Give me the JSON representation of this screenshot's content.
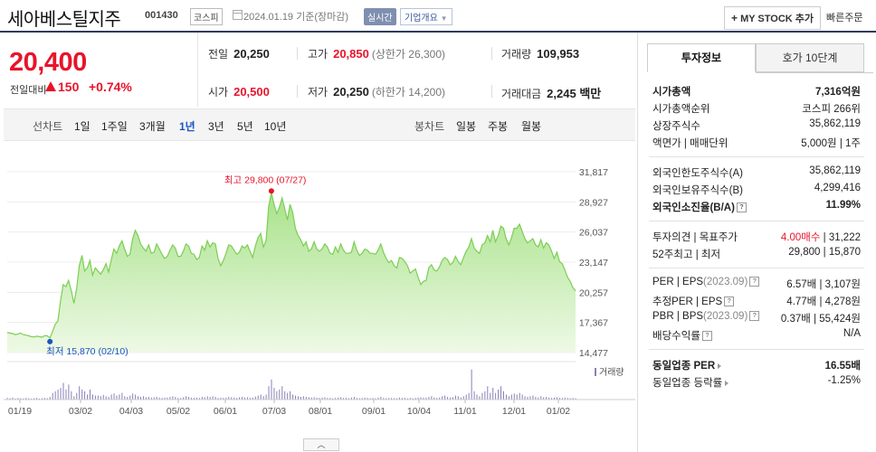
{
  "header": {
    "stock_name": "세아베스틸지주",
    "stock_code": "001430",
    "market": "코스피",
    "date_text": "2024.01.19 기준(장마감)",
    "realtime": "실시간",
    "company_btn": "기업개요",
    "mystock_btn": "MY STOCK 추가",
    "mystock_plus": "+",
    "quick_order": "빠른주문"
  },
  "price": {
    "current": "20,400",
    "change_label": "전일대비",
    "change_value": "150",
    "change_pct": "+0.74%"
  },
  "stats": {
    "prev_close_label": "전일",
    "prev_close": "20,250",
    "high_label": "고가",
    "high": "20,850",
    "upper_limit": "(상한가 26,300)",
    "volume_label": "거래량",
    "volume": "109,953",
    "open_label": "시가",
    "open": "20,500",
    "low_label": "저가",
    "low": "20,250",
    "lower_limit": "(하한가 14,200)",
    "amount_label": "거래대금",
    "amount": "2,245 백만"
  },
  "range_bar": {
    "line_label": "선차트",
    "line_ranges": [
      "1일",
      "1주일",
      "3개월",
      "1년",
      "3년",
      "5년",
      "10년"
    ],
    "active_range": "1년",
    "candle_label": "봉차트",
    "candle_ranges": [
      "일봉",
      "주봉",
      "월봉"
    ]
  },
  "chart_data": {
    "type": "area",
    "y_ticks": [
      "31,817",
      "28,927",
      "26,037",
      "23,147",
      "20,257",
      "17,367",
      "14,477"
    ],
    "ylim": [
      14477,
      31817
    ],
    "x_ticks": [
      "01/19",
      "03/02",
      "04/03",
      "05/02",
      "06/01",
      "07/03",
      "08/01",
      "09/01",
      "10/04",
      "11/01",
      "12/01",
      "01/02"
    ],
    "high_label": "최고 29,800 (07/27)",
    "low_label": "최저 15,870 (02/10)",
    "volume_legend": "거래량",
    "series": [
      {
        "values": [
          16400,
          16350,
          16300,
          16200,
          16250,
          16350,
          16200,
          16150,
          16100,
          16000,
          15970,
          16050,
          16000,
          15950,
          16100,
          16080,
          15870,
          16500,
          17200,
          17500,
          19500,
          21000,
          20800,
          21400,
          20400,
          19200,
          20600,
          22800,
          23800,
          22300,
          22600,
          23300,
          21900,
          22600,
          22300,
          22000,
          22400,
          23000,
          22200,
          23400,
          24400,
          24000,
          24700,
          25200,
          24400,
          23700,
          23900,
          25400,
          26200,
          25700,
          24900,
          24500,
          24200,
          24800,
          24000,
          24100,
          24900,
          24400,
          23900,
          23500,
          23700,
          24300,
          24800,
          24500,
          23700,
          23700,
          24200,
          24900,
          24700,
          24000,
          23900,
          23400,
          23600,
          24700,
          24300,
          25200,
          24600,
          25000,
          24900,
          23500,
          22800,
          23300,
          24000,
          24800,
          24700,
          24300,
          23900,
          24100,
          24700,
          24500,
          24800,
          24200,
          23600,
          24700,
          25500,
          25900,
          24600,
          25200,
          28500,
          29800,
          28700,
          27800,
          28400,
          29300,
          28300,
          27200,
          28700,
          27900,
          26400,
          25700,
          25300,
          24700,
          25100,
          24200,
          24400,
          25100,
          24400,
          24200,
          24400,
          24900,
          24600,
          24000,
          23900,
          24600,
          24100,
          24900,
          24300,
          24000,
          24000,
          24100,
          25100,
          24300,
          23800,
          24000,
          24400,
          24300,
          24000,
          24000,
          23900,
          24300,
          24900,
          24100,
          23500,
          23100,
          23300,
          22800,
          22600,
          23600,
          23500,
          23200,
          22800,
          22100,
          22300,
          22500,
          21700,
          21000,
          21300,
          21400,
          22600,
          22900,
          22400,
          22300,
          22700,
          23300,
          23600,
          23400,
          22900,
          23100,
          23700,
          23200,
          22900,
          23600,
          24200,
          24600,
          25400,
          24500,
          24200,
          24000,
          24800,
          25000,
          25700,
          25100,
          26200,
          25100,
          25700,
          26600,
          26400,
          25400,
          24800,
          25500,
          26400,
          26400,
          26800,
          26100,
          25400,
          25000,
          25200,
          25400,
          24800,
          24600,
          25300,
          24500,
          25000,
          24800,
          24200,
          23500,
          24100,
          23200,
          23000,
          22400,
          21700,
          21300,
          20700,
          20400
        ]
      },
      {
        "name": "거래량",
        "values": [
          0.05,
          0.04,
          0.06,
          0.03,
          0.05,
          0.04,
          0.03,
          0.05,
          0.04,
          0.03,
          0.04,
          0.05,
          0.03,
          0.04,
          0.05,
          0.04,
          0.08,
          0.2,
          0.25,
          0.3,
          0.35,
          0.5,
          0.3,
          0.45,
          0.25,
          0.1,
          0.2,
          0.4,
          0.3,
          0.25,
          0.15,
          0.3,
          0.15,
          0.12,
          0.12,
          0.1,
          0.14,
          0.1,
          0.08,
          0.15,
          0.18,
          0.12,
          0.15,
          0.2,
          0.1,
          0.08,
          0.12,
          0.18,
          0.15,
          0.1,
          0.08,
          0.1,
          0.07,
          0.08,
          0.06,
          0.07,
          0.08,
          0.06,
          0.05,
          0.06,
          0.06,
          0.08,
          0.1,
          0.08,
          0.05,
          0.05,
          0.07,
          0.1,
          0.08,
          0.06,
          0.05,
          0.06,
          0.05,
          0.08,
          0.07,
          0.1,
          0.08,
          0.1,
          0.08,
          0.05,
          0.06,
          0.05,
          0.06,
          0.08,
          0.07,
          0.06,
          0.05,
          0.07,
          0.08,
          0.06,
          0.07,
          0.05,
          0.06,
          0.09,
          0.12,
          0.15,
          0.1,
          0.15,
          0.4,
          0.6,
          0.35,
          0.25,
          0.3,
          0.4,
          0.25,
          0.2,
          0.25,
          0.15,
          0.12,
          0.1,
          0.08,
          0.1,
          0.08,
          0.07,
          0.06,
          0.07,
          0.06,
          0.05,
          0.06,
          0.07,
          0.05,
          0.05,
          0.04,
          0.05,
          0.06,
          0.07,
          0.05,
          0.05,
          0.04,
          0.06,
          0.08,
          0.05,
          0.04,
          0.05,
          0.06,
          0.05,
          0.04,
          0.05,
          0.04,
          0.06,
          0.08,
          0.05,
          0.04,
          0.05,
          0.05,
          0.04,
          0.04,
          0.06,
          0.05,
          0.05,
          0.04,
          0.05,
          0.04,
          0.05,
          0.06,
          0.07,
          0.06,
          0.06,
          0.08,
          0.1,
          0.06,
          0.05,
          0.06,
          0.1,
          0.12,
          0.08,
          0.06,
          0.07,
          0.12,
          0.1,
          0.06,
          0.1,
          0.15,
          0.2,
          0.9,
          0.25,
          0.15,
          0.1,
          0.2,
          0.25,
          0.4,
          0.2,
          0.35,
          0.2,
          0.3,
          0.4,
          0.25,
          0.15,
          0.1,
          0.15,
          0.18,
          0.15,
          0.2,
          0.15,
          0.1,
          0.08,
          0.1,
          0.12,
          0.08,
          0.06,
          0.1,
          0.07,
          0.08,
          0.06,
          0.05,
          0.06,
          0.07,
          0.05,
          0.05,
          0.06,
          0.05,
          0.04,
          0.05,
          0.04
        ]
      }
    ]
  },
  "right": {
    "tab_info": "투자정보",
    "tab_quote": "호가 10단계",
    "market_cap_label": "시가총액",
    "market_cap": "7,316억원",
    "cap_rank_label": "시가총액순위",
    "cap_rank": "코스피 266위",
    "shares_label": "상장주식수",
    "shares": "35,862,119",
    "face_label": "액면가 | 매매단위",
    "face": "5,000원 | 1주",
    "foreign_limit_label": "외국인한도주식수(A)",
    "foreign_limit": "35,862,119",
    "foreign_hold_label": "외국인보유주식수(B)",
    "foreign_hold": "4,299,416",
    "foreign_ratio_label": "외국인소진율(B/A)",
    "foreign_ratio": "11.99%",
    "opinion_label": "투자의견 | 목표주가",
    "opinion_a": "4.00매수",
    "opinion_b": "| 31,222",
    "w52_label": "52주최고 | 최저",
    "w52": "29,800 | 15,870",
    "per_label": "PER | EPS",
    "per_date": "(2023.09)",
    "per": "6.57배 | 3,107원",
    "eper_label": "추정PER | EPS",
    "eper": "4.77배 | 4,278원",
    "pbr_label": "PBR | BPS",
    "pbr_date": "(2023.09)",
    "pbr": "0.37배 | 55,424원",
    "div_label": "배당수익률",
    "div": "N/A",
    "ind_per_label": "동일업종 PER",
    "ind_per": "16.55배",
    "ind_rate_label": "동일업종 등락률",
    "ind_rate": "-1.25%"
  }
}
